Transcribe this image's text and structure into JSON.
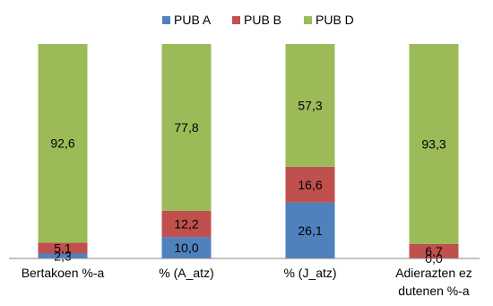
{
  "chart_data": {
    "type": "bar",
    "stacked": true,
    "categories": [
      "Bertakoen %-a",
      "% (A_atz)",
      "% (J_atz)",
      "Adierazten ez dutenen %-a"
    ],
    "category_lines": [
      [
        "Bertakoen %-a"
      ],
      [
        "% (A_atz)"
      ],
      [
        "% (J_atz)"
      ],
      [
        "Adierazten ez",
        "dutenen %-a"
      ]
    ],
    "series": [
      {
        "name": "PUB A",
        "color": "#4f81bd",
        "values": [
          2.3,
          10.0,
          26.1,
          0.0
        ],
        "labels": [
          "2,3",
          "10,0",
          "26,1",
          "0,0"
        ]
      },
      {
        "name": "PUB B",
        "color": "#c0504d",
        "values": [
          5.1,
          12.2,
          16.6,
          6.7
        ],
        "labels": [
          "5,1",
          "12,2",
          "16,6",
          "6,7"
        ]
      },
      {
        "name": "PUB D",
        "color": "#9bbb59",
        "values": [
          92.6,
          77.8,
          57.3,
          93.3
        ],
        "labels": [
          "92,6",
          "77,8",
          "57,3",
          "93,3"
        ]
      }
    ],
    "ylim": [
      0,
      100
    ],
    "grid": false,
    "legend_position": "top",
    "axis_color": "#868686"
  }
}
